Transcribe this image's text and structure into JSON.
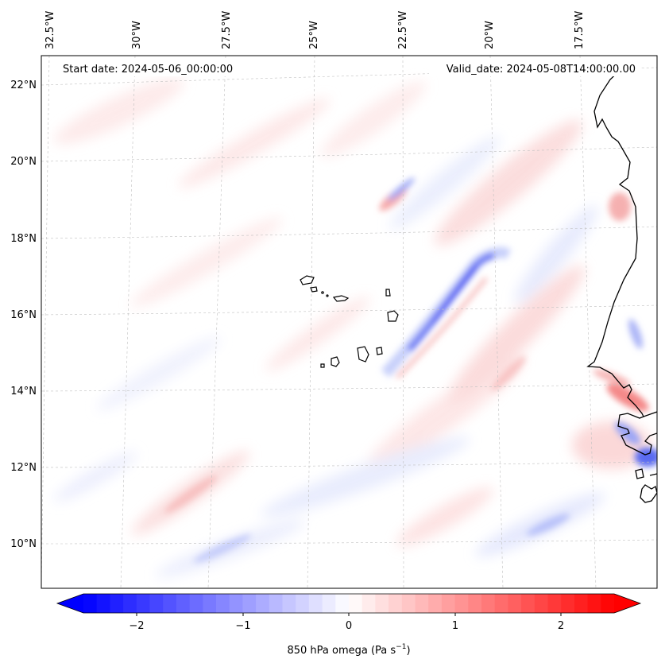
{
  "map": {
    "header": {
      "start_date": "Start date: 2024-05-06_00:00:00",
      "valid_date": "Valid_date: 2024-05-08T14:00:00.00"
    },
    "lon_labels": [
      "32.5°W",
      "30°W",
      "27.5°W",
      "25°W",
      "22.5°W",
      "20°W",
      "17.5°W"
    ],
    "lat_labels": [
      "22°N",
      "20°N",
      "18°N",
      "16°N",
      "14°N",
      "12°N",
      "10°N"
    ],
    "colorbar": {
      "ticks": [
        "−2",
        "−1",
        "0",
        "1",
        "2"
      ],
      "label_main": "850 hPa omega (Pa s",
      "label_sup": "−1",
      "label_close": ")",
      "min": -2.6,
      "max": 2.6,
      "levels": 40,
      "colors": {
        "low": "#0000ff",
        "mid": "#ffffff",
        "high": "#ff0000"
      }
    }
  }
}
